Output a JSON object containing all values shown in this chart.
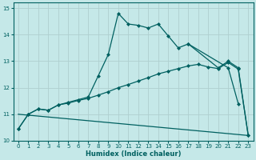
{
  "xlabel": "Humidex (Indice chaleur)",
  "background_color": "#c5e8e8",
  "grid_color": "#afd0d0",
  "line_color": "#006060",
  "xlim": [
    -0.5,
    23.5
  ],
  "ylim": [
    10,
    15.2
  ],
  "yticks": [
    10,
    11,
    12,
    13,
    14,
    15
  ],
  "xticks": [
    0,
    1,
    2,
    3,
    4,
    5,
    6,
    7,
    8,
    9,
    10,
    11,
    12,
    13,
    14,
    15,
    16,
    17,
    18,
    19,
    20,
    21,
    22,
    23
  ],
  "series1_x": [
    0,
    1,
    2,
    3,
    4,
    5,
    6,
    7,
    8,
    9,
    10,
    11,
    12,
    13,
    14,
    15,
    16,
    17,
    21,
    22
  ],
  "series1_y": [
    10.45,
    11.0,
    11.2,
    11.15,
    11.35,
    11.45,
    11.55,
    11.65,
    12.45,
    13.25,
    14.8,
    14.4,
    14.35,
    14.25,
    14.4,
    13.95,
    13.5,
    13.65,
    12.75,
    11.4
  ],
  "series2_x": [
    0,
    1,
    2,
    3,
    4,
    5,
    6,
    7,
    8,
    9,
    10,
    11,
    12,
    13,
    14,
    15,
    16,
    17,
    18,
    19,
    20,
    21,
    22,
    23
  ],
  "series2_y": [
    10.45,
    11.0,
    11.2,
    11.15,
    11.35,
    11.42,
    11.52,
    11.6,
    11.72,
    11.85,
    12.0,
    12.12,
    12.25,
    12.38,
    12.52,
    12.62,
    12.72,
    12.82,
    12.88,
    12.78,
    12.72,
    12.95,
    12.7,
    10.2
  ],
  "series3_x": [
    0,
    23
  ],
  "series3_y": [
    11.0,
    10.2
  ],
  "series4_x": [
    17,
    20,
    21,
    22,
    23
  ],
  "series4_y": [
    13.65,
    12.75,
    13.0,
    12.75,
    10.2
  ]
}
